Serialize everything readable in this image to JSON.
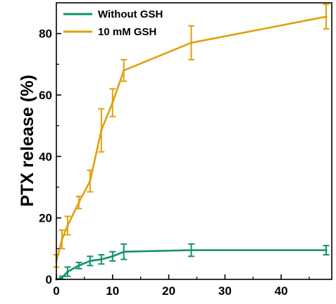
{
  "chart_data": {
    "type": "line",
    "title": "",
    "xlabel": "",
    "ylabel": "PTX release (%)",
    "xlim": [
      0,
      49
    ],
    "ylim": [
      0,
      90
    ],
    "x_ticks": [
      0,
      10,
      20,
      30,
      40
    ],
    "y_ticks": [
      0,
      20,
      40,
      60,
      80
    ],
    "legend_position": "top-left",
    "grid": false,
    "series": [
      {
        "name": "Without GSH",
        "color": "#12906f",
        "x": [
          0,
          1,
          2,
          4,
          6,
          8,
          10,
          12,
          24,
          48
        ],
        "y": [
          0,
          0.5,
          2.5,
          4.5,
          6,
          6.5,
          7.5,
          9,
          9.5,
          9.5
        ],
        "err": [
          0,
          0.5,
          1.5,
          1,
          1.5,
          1.5,
          1.5,
          2.5,
          2,
          1.5
        ]
      },
      {
        "name": "10 mM GSH",
        "color": "#e0a010",
        "x": [
          0,
          1,
          2,
          4,
          6,
          8,
          10,
          12,
          24,
          48
        ],
        "y": [
          6,
          13,
          17.5,
          25,
          32,
          48.5,
          57.5,
          68,
          77,
          85.5
        ],
        "err": [
          2,
          3,
          3,
          2,
          3.5,
          7,
          4.5,
          3.5,
          5.5,
          4
        ]
      }
    ]
  }
}
